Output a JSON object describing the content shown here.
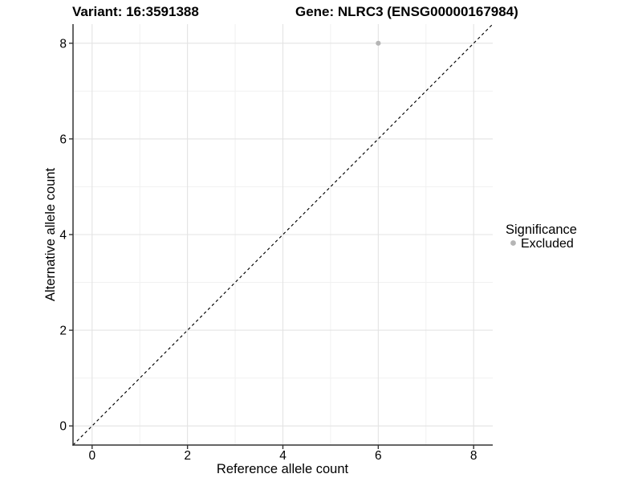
{
  "page": {
    "background_color": "#ffffff"
  },
  "chart_data": {
    "type": "scatter",
    "title_left": "Variant: 16:3591388",
    "title_right": "Gene: NLRC3 (ENSG00000167984)",
    "xlabel": "Reference allele count",
    "ylabel": "Alternative allele count",
    "xlim": [
      -0.4,
      8.4
    ],
    "ylim": [
      -0.4,
      8.4
    ],
    "x_major_ticks": [
      0,
      2,
      4,
      6,
      8
    ],
    "y_major_ticks": [
      0,
      2,
      4,
      6,
      8
    ],
    "x_minor_ticks": [
      1,
      3,
      5,
      7
    ],
    "y_minor_ticks": [
      1,
      3,
      5,
      7
    ],
    "grid": true,
    "points": [
      {
        "x": 6,
        "y": 8,
        "series": "Excluded"
      }
    ],
    "reference_line": {
      "equation": "y = x",
      "style": "dashed",
      "from": {
        "x": -0.4,
        "y": -0.4
      },
      "to": {
        "x": 8.4,
        "y": 8.4
      }
    },
    "legend": {
      "title": "Significance",
      "position": "right",
      "entries": [
        {
          "label": "Excluded",
          "marker": "circle",
          "color": "#b5b5b5"
        }
      ]
    },
    "colors": {
      "point": "#b5b5b5",
      "grid_major": "#e3e3e3",
      "grid_minor": "#f1f1f1",
      "axis_line": "#333333",
      "reference_line": "#000000",
      "text": "#000000"
    }
  }
}
